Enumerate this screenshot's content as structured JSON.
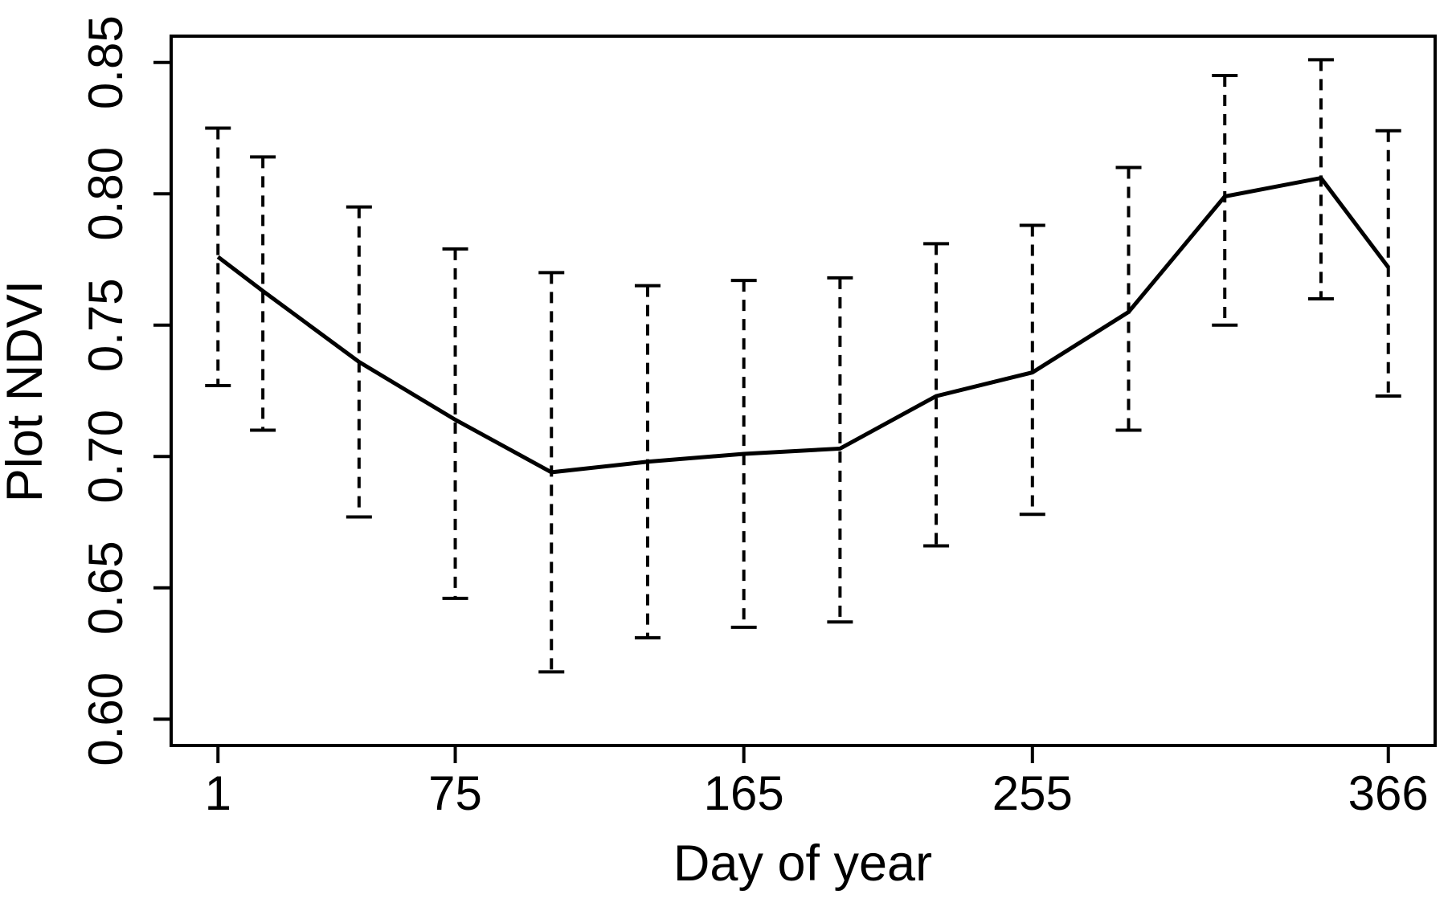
{
  "figure": {
    "type": "r-base-plot",
    "background_color": "#ffffff",
    "foreground_color": "#000000"
  },
  "chart_data": {
    "type": "line",
    "title": "",
    "xlabel": "Day of year",
    "ylabel": "Plot NDVI",
    "x": [
      1,
      15,
      45,
      75,
      105,
      135,
      165,
      195,
      225,
      255,
      285,
      315,
      345,
      366
    ],
    "series": [
      {
        "name": "mean plot NDVI",
        "values": [
          0.776,
          0.763,
          0.736,
          0.714,
          0.694,
          0.698,
          0.701,
          0.703,
          0.723,
          0.732,
          0.755,
          0.799,
          0.806,
          0.772
        ]
      },
      {
        "name": "upper error bound",
        "values": [
          0.825,
          0.814,
          0.795,
          0.779,
          0.77,
          0.765,
          0.767,
          0.768,
          0.781,
          0.788,
          0.81,
          0.845,
          0.851,
          0.824
        ]
      },
      {
        "name": "lower error bound",
        "values": [
          0.727,
          0.71,
          0.677,
          0.646,
          0.618,
          0.631,
          0.635,
          0.637,
          0.666,
          0.678,
          0.71,
          0.75,
          0.76,
          0.723
        ]
      }
    ],
    "error_bar_style": "dashed vertical whiskers with solid end caps",
    "line_color": "#000000",
    "x_ticks": [
      1,
      75,
      165,
      255,
      366
    ],
    "x_tick_labels": [
      "1",
      "75",
      "165",
      "255",
      "366"
    ],
    "y_ticks": [
      0.6,
      0.65,
      0.7,
      0.75,
      0.8,
      0.85
    ],
    "y_tick_labels": [
      "0.60",
      "0.65",
      "0.70",
      "0.75",
      "0.80",
      "0.85"
    ],
    "xlim": [
      -13.6,
      380.6
    ],
    "ylim": [
      0.59,
      0.86
    ],
    "grid": false,
    "legend": "none",
    "y_tick_label_orientation": "rotated-90-parallel-to-axis"
  }
}
